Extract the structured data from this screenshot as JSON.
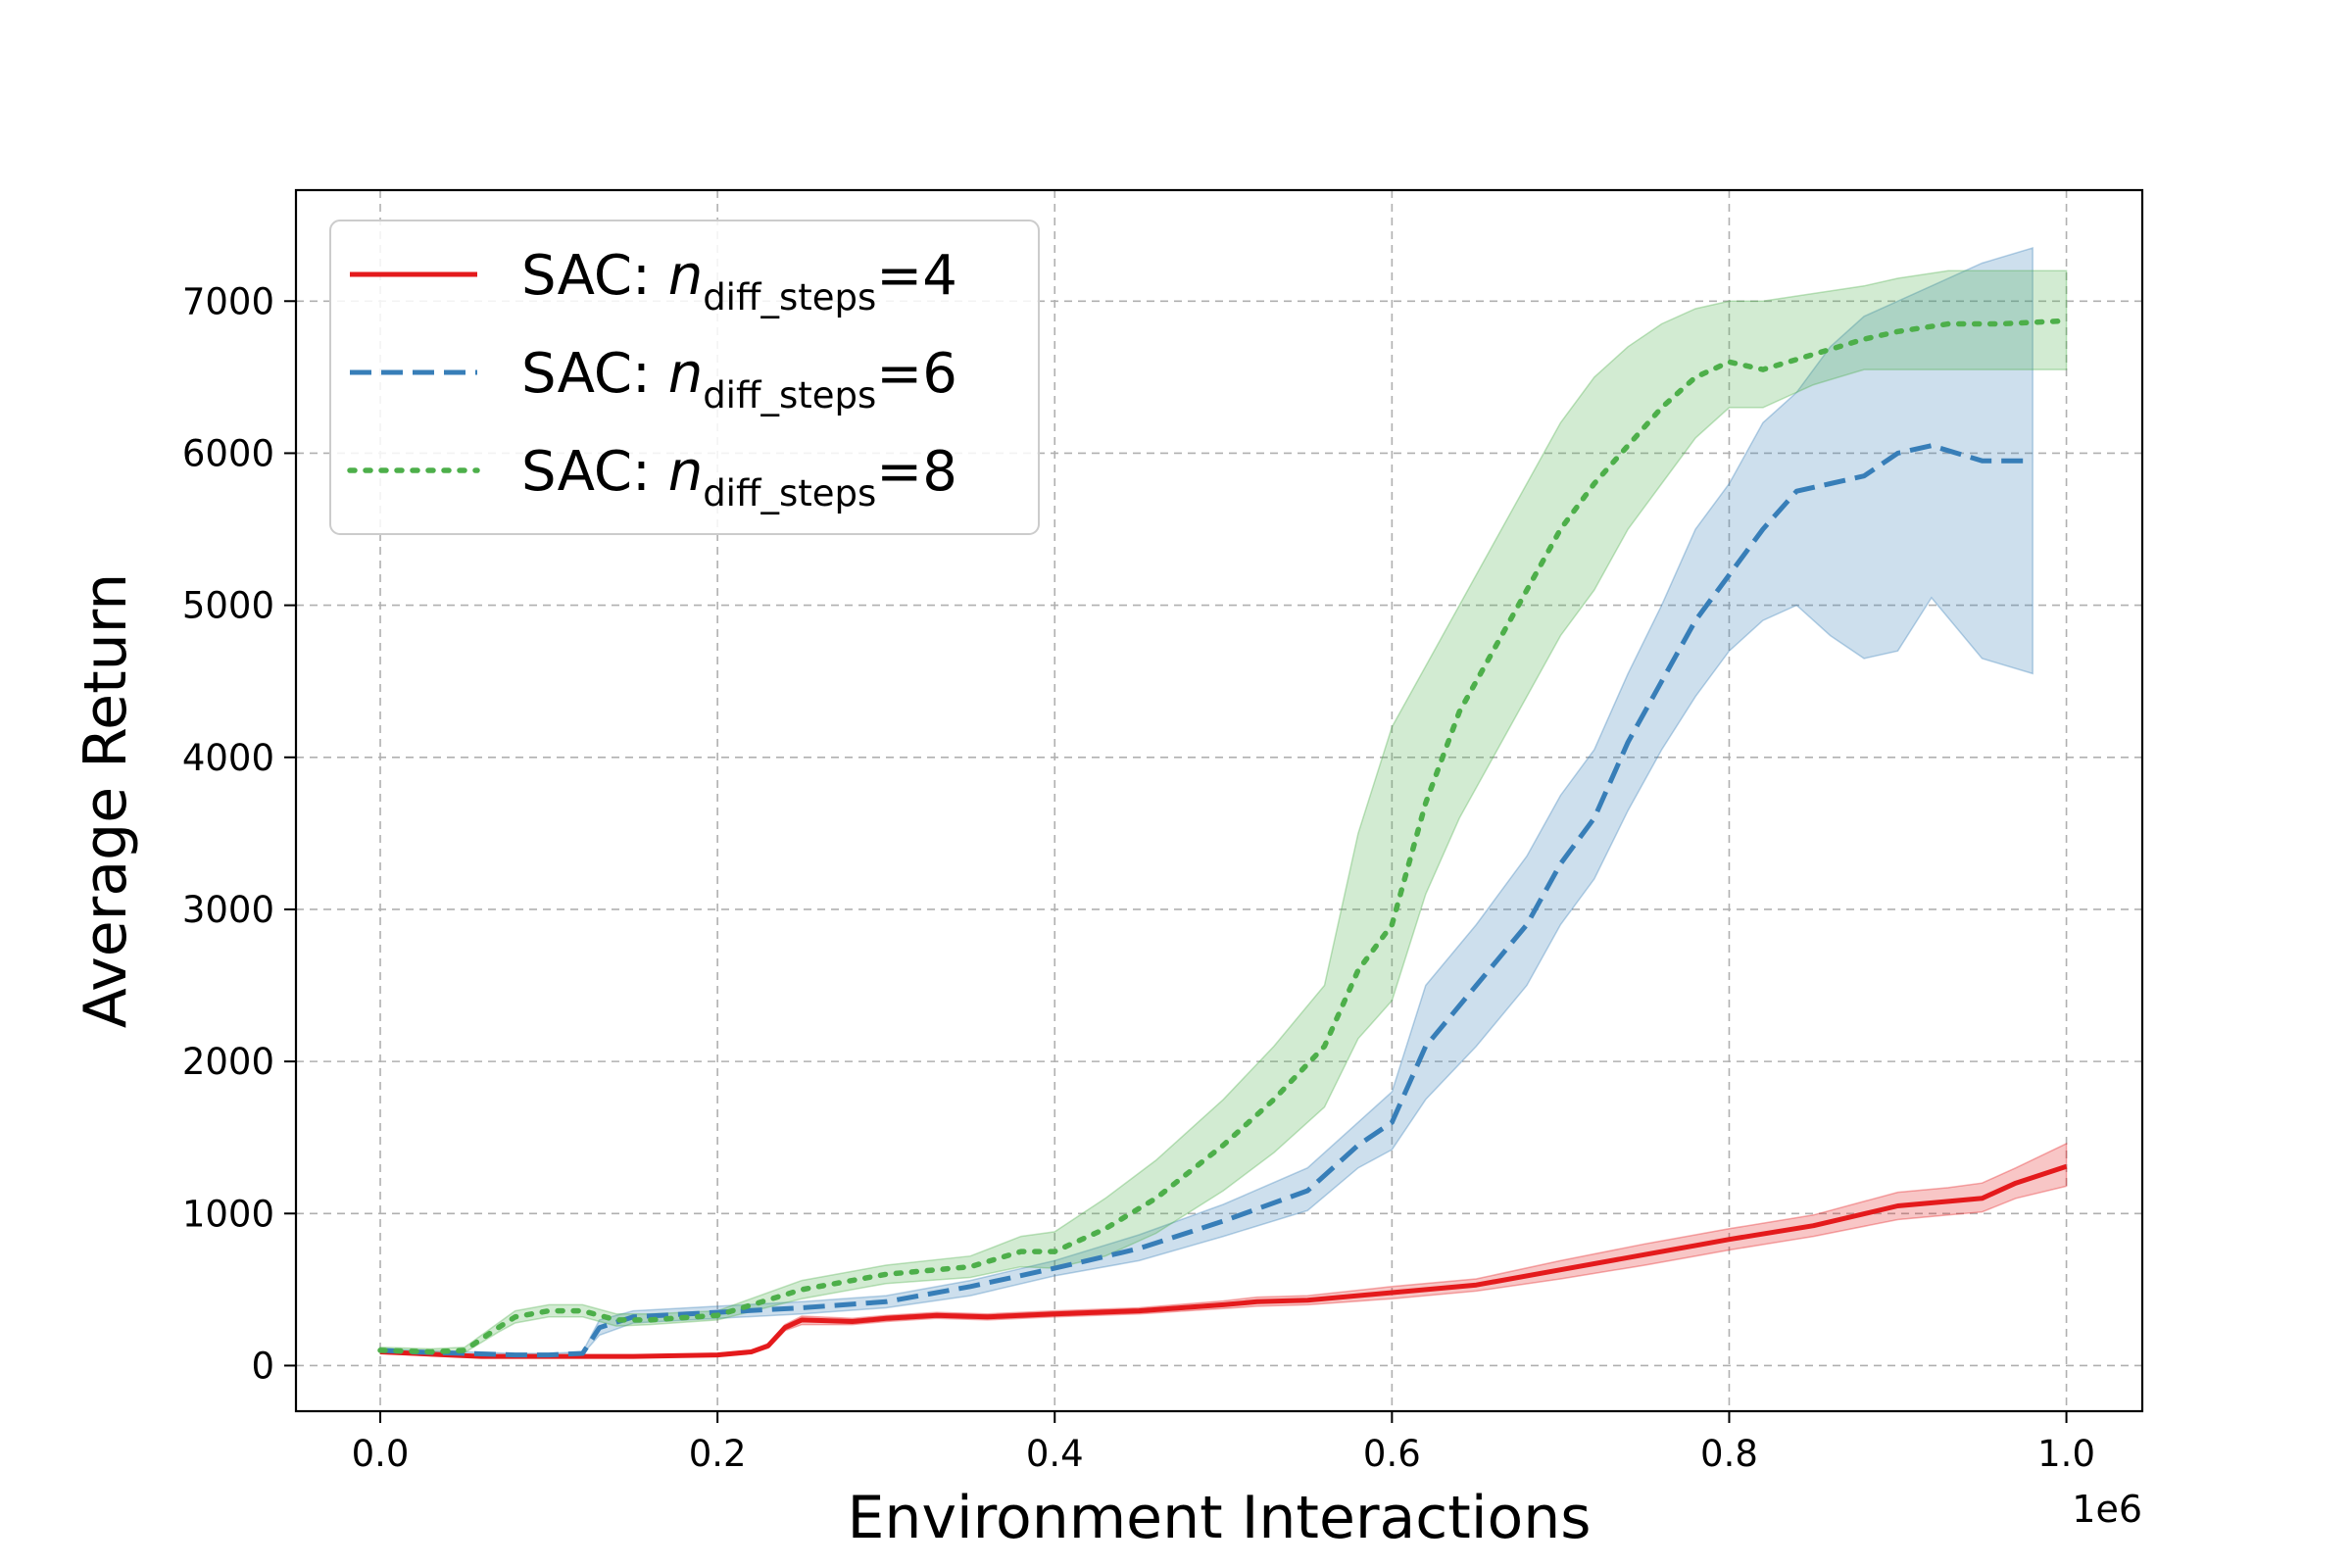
{
  "chart_data": {
    "type": "line",
    "xlabel": "Environment Interactions",
    "ylabel": "Average Return",
    "x_offset_label": "1e6",
    "x_scale": 1000000,
    "xlim": [
      -0.05,
      1.045
    ],
    "ylim": [
      -300,
      7730
    ],
    "xticks": [
      0.0,
      0.2,
      0.4,
      0.6,
      0.8,
      1.0
    ],
    "xtick_labels": [
      "0.0",
      "0.2",
      "0.4",
      "0.6",
      "0.8",
      "1.0"
    ],
    "yticks": [
      0,
      1000,
      2000,
      3000,
      4000,
      5000,
      6000,
      7000
    ],
    "ytick_labels": [
      "0",
      "1000",
      "2000",
      "3000",
      "4000",
      "5000",
      "6000",
      "7000"
    ],
    "grid": true,
    "legend_position": "top-left",
    "series": [
      {
        "legend_prefix": "SAC: ",
        "legend_var": "n",
        "legend_sub": "diff_steps",
        "legend_suffix": "=4",
        "color": "#e41a1c",
        "style": "solid",
        "x": [
          0.0,
          0.02,
          0.04,
          0.06,
          0.1,
          0.15,
          0.2,
          0.22,
          0.23,
          0.24,
          0.25,
          0.28,
          0.3,
          0.33,
          0.36,
          0.4,
          0.45,
          0.5,
          0.52,
          0.55,
          0.6,
          0.65,
          0.7,
          0.75,
          0.78,
          0.8,
          0.85,
          0.9,
          0.93,
          0.95,
          0.97,
          1.0
        ],
        "y": [
          90,
          80,
          70,
          60,
          60,
          60,
          70,
          90,
          130,
          250,
          300,
          290,
          310,
          330,
          320,
          340,
          360,
          400,
          420,
          430,
          480,
          530,
          630,
          730,
          790,
          830,
          920,
          1050,
          1080,
          1100,
          1200,
          1310
        ],
        "lower": [
          80,
          70,
          60,
          55,
          55,
          55,
          60,
          80,
          115,
          230,
          270,
          270,
          290,
          310,
          300,
          320,
          340,
          375,
          390,
          400,
          440,
          490,
          570,
          660,
          720,
          760,
          850,
          960,
          990,
          1010,
          1100,
          1180
        ],
        "upper": [
          100,
          90,
          80,
          65,
          65,
          65,
          80,
          100,
          145,
          270,
          325,
          310,
          330,
          350,
          340,
          360,
          380,
          425,
          450,
          460,
          520,
          570,
          690,
          800,
          860,
          900,
          990,
          1140,
          1170,
          1200,
          1300,
          1460
        ]
      },
      {
        "legend_prefix": "SAC: ",
        "legend_var": "n",
        "legend_sub": "diff_steps",
        "legend_suffix": "=6",
        "color": "#377eb8",
        "style": "dashed",
        "x": [
          0.0,
          0.02,
          0.05,
          0.08,
          0.1,
          0.12,
          0.13,
          0.15,
          0.2,
          0.25,
          0.3,
          0.35,
          0.4,
          0.45,
          0.5,
          0.55,
          0.58,
          0.6,
          0.62,
          0.65,
          0.68,
          0.7,
          0.72,
          0.74,
          0.76,
          0.78,
          0.8,
          0.82,
          0.84,
          0.86,
          0.88,
          0.9,
          0.92,
          0.95,
          0.98
        ],
        "y": [
          100,
          90,
          80,
          70,
          70,
          80,
          250,
          320,
          350,
          380,
          420,
          520,
          640,
          770,
          950,
          1150,
          1450,
          1600,
          2100,
          2500,
          2900,
          3300,
          3600,
          4100,
          4500,
          4900,
          5200,
          5500,
          5750,
          5800,
          5850,
          6000,
          6050,
          5950,
          5950
        ],
        "lower": [
          90,
          80,
          75,
          65,
          65,
          75,
          200,
          280,
          310,
          340,
          380,
          460,
          590,
          690,
          850,
          1020,
          1300,
          1420,
          1750,
          2100,
          2500,
          2900,
          3200,
          3650,
          4050,
          4400,
          4700,
          4900,
          5000,
          4800,
          4650,
          4700,
          5050,
          4650,
          4550
        ],
        "upper": [
          110,
          100,
          90,
          80,
          80,
          90,
          300,
          360,
          390,
          420,
          460,
          560,
          690,
          860,
          1060,
          1300,
          1600,
          1800,
          2500,
          2900,
          3350,
          3750,
          4050,
          4550,
          5000,
          5500,
          5800,
          6200,
          6400,
          6700,
          6900,
          7000,
          7100,
          7250,
          7350
        ]
      },
      {
        "legend_prefix": "SAC: ",
        "legend_var": "n",
        "legend_sub": "diff_steps",
        "legend_suffix": "=8",
        "color": "#4daf4a",
        "style": "dotted",
        "x": [
          0.0,
          0.03,
          0.05,
          0.07,
          0.08,
          0.1,
          0.12,
          0.14,
          0.16,
          0.2,
          0.25,
          0.3,
          0.35,
          0.38,
          0.4,
          0.43,
          0.46,
          0.5,
          0.53,
          0.56,
          0.58,
          0.6,
          0.62,
          0.64,
          0.66,
          0.68,
          0.7,
          0.72,
          0.74,
          0.76,
          0.78,
          0.8,
          0.82,
          0.85,
          0.88,
          0.9,
          0.93,
          0.96,
          1.0
        ],
        "y": [
          100,
          90,
          100,
          250,
          320,
          360,
          360,
          300,
          300,
          330,
          500,
          600,
          650,
          750,
          750,
          900,
          1100,
          1450,
          1750,
          2100,
          2600,
          2900,
          3700,
          4300,
          4700,
          5100,
          5500,
          5800,
          6050,
          6300,
          6500,
          6600,
          6550,
          6650,
          6750,
          6800,
          6850,
          6850,
          6870
        ],
        "lower": [
          80,
          75,
          85,
          220,
          280,
          320,
          320,
          260,
          270,
          300,
          440,
          540,
          580,
          650,
          640,
          720,
          870,
          1150,
          1400,
          1700,
          2150,
          2400,
          3100,
          3600,
          4000,
          4400,
          4800,
          5100,
          5500,
          5800,
          6100,
          6300,
          6300,
          6450,
          6550,
          6550,
          6550,
          6550,
          6550
        ],
        "upper": [
          120,
          110,
          120,
          280,
          360,
          400,
          400,
          340,
          340,
          360,
          560,
          660,
          720,
          850,
          880,
          1100,
          1350,
          1750,
          2100,
          2500,
          3500,
          4200,
          4600,
          5000,
          5400,
          5800,
          6200,
          6500,
          6700,
          6850,
          6950,
          7000,
          7000,
          7050,
          7100,
          7150,
          7200,
          7200,
          7200
        ]
      }
    ]
  }
}
